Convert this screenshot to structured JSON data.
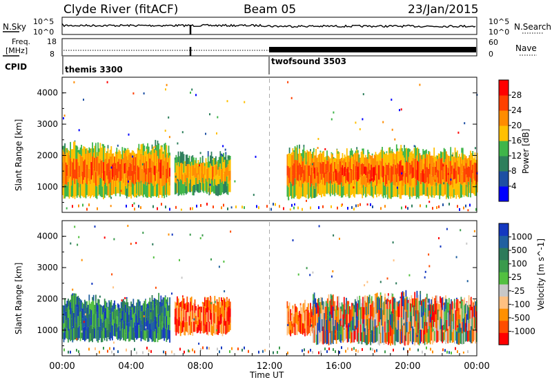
{
  "header": {
    "station": "Clyde River (fitACF)",
    "beam": "Beam 05",
    "date": "23/Jan/2015"
  },
  "summary": {
    "nsky_label": "N.Sky",
    "nsky_ticks": [
      "10^5",
      "10^0"
    ],
    "nsearch_label": "N.Search",
    "nsearch_ticks": [
      "10^5",
      "10^0"
    ],
    "freq_label_1": "Freq.",
    "freq_label_2": "[MHz]",
    "freq_ticks": [
      "18",
      "8"
    ],
    "nave_label": "Nave",
    "nave_ticks": [
      "60",
      "0"
    ],
    "cpid_label": "CPID",
    "cpid_segments": [
      {
        "name": "themis 3300",
        "start_hour": 0
      },
      {
        "name": "twofsound 3503",
        "start_hour": 12
      }
    ]
  },
  "colors": {
    "power_scale": [
      "#0000ff",
      "#1d4fa3",
      "#2e7f5c",
      "#3fb54a",
      "#ffc000",
      "#ff8c00",
      "#ff4000",
      "#ff0000"
    ],
    "velocity_scale": [
      "#ff0000",
      "#ff4d00",
      "#ff9000",
      "#ffc080",
      "#c8c8c8",
      "#52c040",
      "#3a9a4c",
      "#2c7a5a",
      "#2060a0",
      "#1438c0"
    ],
    "gap_line": "#aaaaaa"
  },
  "chart_data": [
    {
      "type": "heatmap",
      "name": "power",
      "ylabel": "Slant Range [km]",
      "y_ticks": [
        "4000",
        "3000",
        "2000",
        "1000"
      ],
      "ylim": [
        180,
        4500
      ],
      "colorbar_label": "Power [dB]",
      "colorbar_ticks": [
        "28",
        "24",
        "20",
        "16",
        "12",
        "8",
        "4"
      ],
      "clim": [
        0,
        32
      ],
      "echo_regions": [
        {
          "t_start": 0.0,
          "t_end": 6.2,
          "range_low": 600,
          "range_high": 2400,
          "level": "high"
        },
        {
          "t_start": 6.5,
          "t_end": 9.7,
          "range_low": 700,
          "range_high": 2100,
          "level": "medium"
        },
        {
          "t_start": 13.0,
          "t_end": 24.0,
          "range_low": 600,
          "range_high": 2300,
          "level": "high"
        }
      ],
      "data_gap": {
        "t_start": 9.8,
        "t_end": 13.0
      }
    },
    {
      "type": "heatmap",
      "name": "velocity",
      "ylabel": "Slant Range [km]",
      "y_ticks": [
        "4000",
        "3000",
        "2000",
        "1000"
      ],
      "ylim": [
        180,
        4500
      ],
      "colorbar_label": "Velocity [m s^-1]",
      "colorbar_ticks": [
        "1000",
        "500",
        "100",
        "25",
        "-25",
        "-100",
        "-500",
        "-1000"
      ],
      "clim": [
        -1200,
        1200
      ],
      "echo_regions": [
        {
          "t_start": 0.0,
          "t_end": 6.2,
          "range_low": 600,
          "range_high": 2100,
          "level": "positive"
        },
        {
          "t_start": 6.5,
          "t_end": 9.7,
          "range_low": 800,
          "range_high": 2100,
          "level": "negative"
        },
        {
          "t_start": 13.0,
          "t_end": 14.5,
          "range_low": 800,
          "range_high": 1900,
          "level": "negative"
        },
        {
          "t_start": 14.5,
          "t_end": 24.0,
          "range_low": 500,
          "range_high": 2200,
          "level": "mixed"
        }
      ],
      "data_gap": {
        "t_start": 9.8,
        "t_end": 13.0
      }
    }
  ],
  "x_axis": {
    "label": "Time UT",
    "ticks": [
      "00:00",
      "04:00",
      "08:00",
      "12:00",
      "16:00",
      "20:00",
      "00:00"
    ],
    "xlim": [
      0,
      24
    ]
  }
}
